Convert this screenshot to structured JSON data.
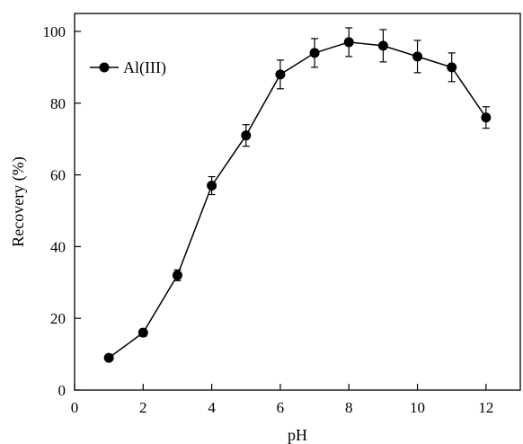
{
  "chart_data": {
    "type": "line",
    "title": "",
    "xlabel": "pH",
    "ylabel": "Recovery (%)",
    "xlim": [
      0,
      13
    ],
    "ylim": [
      0,
      105
    ],
    "xticks": [
      0,
      2,
      4,
      6,
      8,
      10,
      12
    ],
    "yticks": [
      0,
      20,
      40,
      60,
      80,
      100
    ],
    "grid": false,
    "legend_position": "top-left",
    "series": [
      {
        "name": "Al(III)",
        "color": "#000000",
        "marker": "circle",
        "x": [
          1,
          2,
          3,
          4,
          5,
          6,
          7,
          8,
          9,
          10,
          11,
          12
        ],
        "y": [
          9,
          16,
          32,
          57,
          71,
          88,
          94,
          97,
          96,
          93,
          90,
          76
        ],
        "error": [
          0,
          1,
          1.5,
          2.5,
          3,
          4,
          4,
          4,
          4.5,
          4.5,
          4,
          3
        ]
      }
    ]
  }
}
